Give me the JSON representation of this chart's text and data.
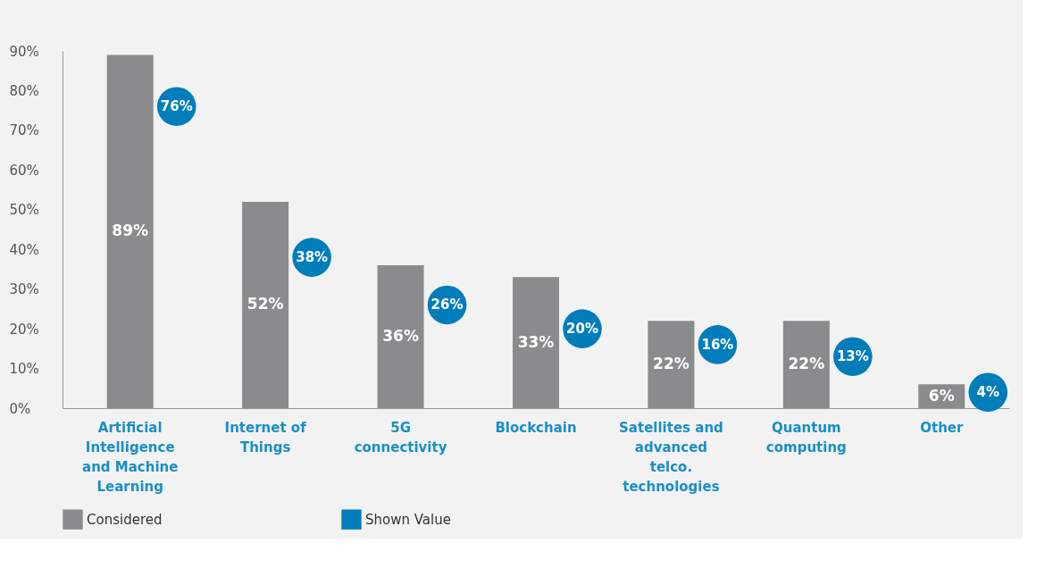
{
  "chart_data": {
    "type": "bar",
    "categories": [
      "Artificial Intelligence and Machine Learning",
      "Internet of Things",
      "5G connectivity",
      "Blockchain",
      "Satellites and advanced telco. technologies",
      "Quantum computing",
      "Other"
    ],
    "series": [
      {
        "name": "Considered",
        "color": "#8a8b8d",
        "values": [
          89,
          52,
          36,
          33,
          22,
          22,
          6
        ],
        "value_labels": [
          "89%",
          "52%",
          "36%",
          "33%",
          "22%",
          "22%",
          "6%"
        ]
      },
      {
        "name": "Shown Value",
        "type": "scatter",
        "color": "#007dba",
        "marker": "circle",
        "values": [
          76,
          38,
          26,
          20,
          16,
          13,
          4
        ],
        "value_labels": [
          "76%",
          "38%",
          "26%",
          "20%",
          "16%",
          "13%",
          "4%"
        ]
      }
    ],
    "ylim": [
      0,
      90
    ],
    "yticks": [
      {
        "value": 0,
        "label": "0%"
      },
      {
        "value": 10,
        "label": "10%"
      },
      {
        "value": 20,
        "label": "20%"
      },
      {
        "value": 30,
        "label": "30%"
      },
      {
        "value": 40,
        "label": "40%"
      },
      {
        "value": 50,
        "label": "50%"
      },
      {
        "value": 60,
        "label": "60%"
      },
      {
        "value": 70,
        "label": "70%"
      },
      {
        "value": 80,
        "label": "80%"
      },
      {
        "value": 90,
        "label": "90%"
      }
    ],
    "grid": false,
    "legend": "bottom"
  }
}
